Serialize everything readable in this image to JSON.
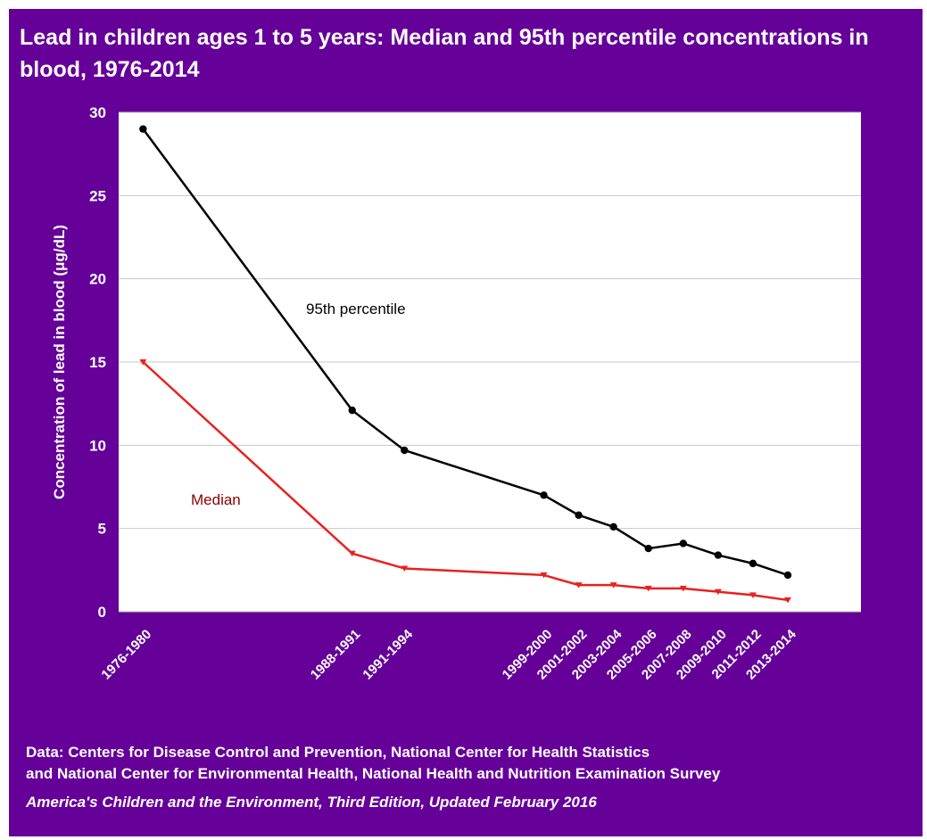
{
  "chart_data": {
    "type": "line",
    "title": "Lead in children ages 1 to 5 years: Median and 95th percentile concentrations in blood, 1976-2014",
    "xlabel": "",
    "ylabel": "Concentration of lead in blood (μg/dL)",
    "ylim": [
      0,
      30
    ],
    "yticks": [
      0,
      5,
      10,
      15,
      20,
      25,
      30
    ],
    "x_start_years": [
      1976,
      1988,
      1991,
      1999,
      2001,
      2003,
      2005,
      2007,
      2009,
      2011,
      2013
    ],
    "categories": [
      "1976-1980",
      "1988-1991",
      "1991-1994",
      "1999-2000",
      "2001-2002",
      "2003-2004",
      "2005-2006",
      "2007-2008",
      "2009-2010",
      "2011-2012",
      "2013-2014"
    ],
    "series": [
      {
        "name": "95th percentile",
        "color": "#000000",
        "marker": "circle",
        "values": [
          29.0,
          12.1,
          9.7,
          7.0,
          5.8,
          5.1,
          3.8,
          4.1,
          3.4,
          2.9,
          2.2
        ]
      },
      {
        "name": "Median",
        "color": "#e8211f",
        "label_color": "#8b0000",
        "marker": "triangle-down",
        "values": [
          15.0,
          3.5,
          2.6,
          2.2,
          1.6,
          1.6,
          1.4,
          1.4,
          1.2,
          1.0,
          0.7
        ]
      }
    ],
    "grid": true,
    "legend": "inline labels"
  },
  "footer": {
    "source_line1": "Data: Centers for Disease Control and Prevention, National Center for Health Statistics",
    "source_line2": "and National Center for Environmental Health, National Health and Nutrition Examination Survey",
    "credit": "America's Children and the Environment, Third Edition, Updated February 2016"
  },
  "colors": {
    "background": "#650099",
    "plot_area": "#ffffff",
    "gridline": "#c8c8c8"
  }
}
